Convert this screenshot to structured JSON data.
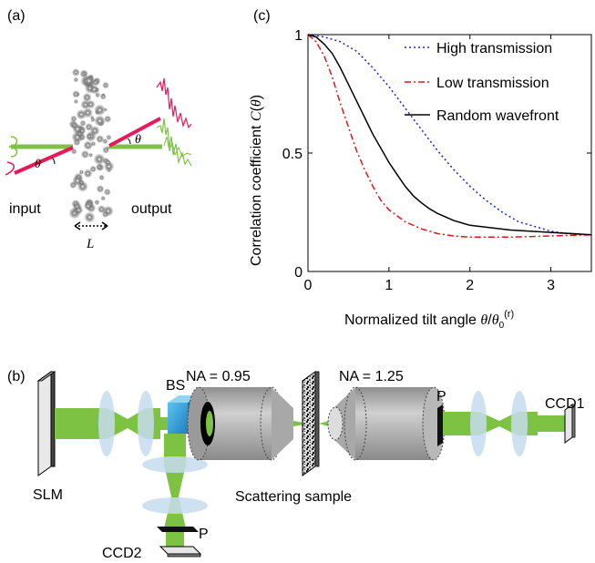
{
  "panels": {
    "a": {
      "label": "(a)",
      "input_label": "input",
      "output_label": "output",
      "theta_label": "θ",
      "thickness_label": "L",
      "colors": {
        "beam": "#7dc242",
        "tilted": "#e8195a",
        "scatterer": "#555555"
      }
    },
    "b": {
      "label": "(b)",
      "slm_label": "SLM",
      "bs_label": "BS",
      "na_left_label": "NA = 0.95",
      "na_right_label": "NA = 1.25",
      "sample_label": "Scattering sample",
      "polarizer_label_right": "P",
      "polarizer_label_bottom": "P",
      "ccd1_label": "CCD1",
      "ccd2_label": "CCD2",
      "colors": {
        "beam": "#7dc242",
        "lens": "#c5dcef",
        "objective": "#bdbdbd",
        "bs": "#29a3e0"
      }
    },
    "c": {
      "label": "(c)",
      "chart_data": {
        "type": "line",
        "xlabel": "Normalized tilt angle θ/θ0(r)",
        "ylabel": "Correlation coefficient C(θ)",
        "xlim": [
          0,
          3.5
        ],
        "ylim": [
          0,
          1
        ],
        "xticks": [
          0,
          1,
          2,
          3
        ],
        "yticks": [
          0,
          0.5,
          1
        ],
        "xtick_labels": [
          "0",
          "1",
          "2",
          "3"
        ],
        "ytick_labels": [
          "0",
          "0.5",
          "1"
        ],
        "grid": false,
        "legend_position": "top-right",
        "series": [
          {
            "name": "High transmission",
            "color": "#1f1fe6",
            "dash": "dotted",
            "x": [
              0,
              0.2,
              0.4,
              0.6,
              0.8,
              1.0,
              1.2,
              1.4,
              1.6,
              1.8,
              2.0,
              2.2,
              2.4,
              2.6,
              2.8,
              3.0,
              3.2,
              3.5
            ],
            "y": [
              1.0,
              0.99,
              0.97,
              0.93,
              0.86,
              0.78,
              0.69,
              0.6,
              0.51,
              0.43,
              0.36,
              0.3,
              0.25,
              0.21,
              0.19,
              0.17,
              0.16,
              0.155
            ]
          },
          {
            "name": "Low transmission",
            "color": "#e3161b",
            "dash": "dashdot",
            "x": [
              0,
              0.1,
              0.2,
              0.3,
              0.4,
              0.5,
              0.6,
              0.7,
              0.8,
              0.9,
              1.0,
              1.2,
              1.4,
              1.6,
              1.8,
              2.0,
              2.5,
              3.0,
              3.5
            ],
            "y": [
              1.0,
              0.97,
              0.91,
              0.82,
              0.71,
              0.61,
              0.51,
              0.43,
              0.36,
              0.3,
              0.26,
              0.21,
              0.18,
              0.16,
              0.15,
              0.145,
              0.145,
              0.15,
              0.155
            ]
          },
          {
            "name": "Random wavefront",
            "color": "#000000",
            "dash": "solid",
            "x": [
              0,
              0.1,
              0.2,
              0.3,
              0.4,
              0.5,
              0.6,
              0.7,
              0.8,
              0.9,
              1.0,
              1.1,
              1.2,
              1.3,
              1.4,
              1.5,
              1.6,
              1.8,
              2.0,
              2.5,
              3.0,
              3.5
            ],
            "y": [
              1.0,
              0.99,
              0.96,
              0.92,
              0.86,
              0.79,
              0.72,
              0.65,
              0.58,
              0.52,
              0.46,
              0.41,
              0.36,
              0.32,
              0.29,
              0.265,
              0.245,
              0.215,
              0.195,
              0.175,
              0.165,
              0.155
            ]
          }
        ]
      }
    }
  }
}
